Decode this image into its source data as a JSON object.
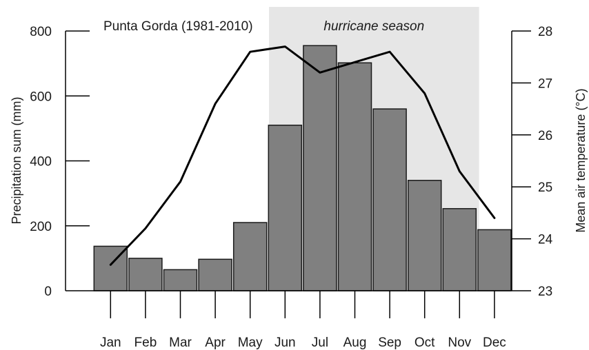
{
  "chart_data": {
    "type": "bar",
    "title": "Punta Gorda (1981-2010)",
    "categories": [
      "Jan",
      "Feb",
      "Mar",
      "Apr",
      "May",
      "Jun",
      "Jul",
      "Aug",
      "Sep",
      "Oct",
      "Nov",
      "Dec"
    ],
    "series": [
      {
        "name": "Precipitation sum",
        "type": "bar",
        "axis": "left",
        "values": [
          137,
          100,
          65,
          97,
          210,
          510,
          755,
          702,
          560,
          340,
          253,
          188
        ]
      },
      {
        "name": "Mean air temperature",
        "type": "line",
        "axis": "right",
        "values": [
          23.5,
          24.2,
          25.1,
          26.6,
          27.6,
          27.7,
          27.2,
          27.4,
          27.6,
          26.8,
          25.3,
          24.4
        ]
      }
    ],
    "ylabel": "Precipitation sum (mm)",
    "ylim": [
      0,
      800
    ],
    "yticks": [
      "0",
      "200",
      "400",
      "600",
      "800"
    ],
    "y2label": "Mean air temperature (°C)",
    "y2lim": [
      23,
      28
    ],
    "y2ticks": [
      "23",
      "24",
      "25",
      "26",
      "27",
      "28"
    ],
    "xlabel": "",
    "band": {
      "label": "hurricane season",
      "start": "Jun",
      "end": "Nov",
      "color": "#e6e6e6"
    },
    "colors": {
      "bar_fill": "#808080",
      "bar_stroke": "#1a1a1a",
      "line": "#000000",
      "axis": "#000000"
    },
    "grid": false,
    "legend": "none"
  }
}
